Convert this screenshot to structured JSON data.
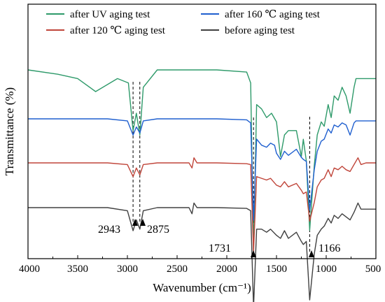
{
  "chart_data": {
    "type": "line",
    "xlabel": "Wavenumber (cm⁻¹)",
    "ylabel": "Transmittance (%)",
    "xlim": [
      4000,
      500
    ],
    "x_reversed": true,
    "x_ticks": [
      "4000",
      "3500",
      "3000",
      "2500",
      "2000",
      "1500",
      "1000",
      "500"
    ],
    "y_tick_labels_shown": false,
    "y_axis_unit": "offset transmittance (stacked, arbitrary)",
    "legend": {
      "placement": "top",
      "columns": 2,
      "entries": [
        {
          "label": "after UV aging test",
          "color": "#2e9a6a"
        },
        {
          "label": "after 160 ℃ aging test",
          "color": "#1f5fcf"
        },
        {
          "label": "after 120 ℃ aging test",
          "color": "#c0453a"
        },
        {
          "label": "before aging test",
          "color": "#404040"
        }
      ]
    },
    "series": [
      {
        "name": "after UV aging test",
        "color": "#2e9a6a",
        "baseline": 100,
        "points": [
          [
            4000,
            100
          ],
          [
            3700,
            99
          ],
          [
            3500,
            98
          ],
          [
            3320,
            95
          ],
          [
            3100,
            98
          ],
          [
            2990,
            97
          ],
          [
            2943,
            86
          ],
          [
            2910,
            90
          ],
          [
            2875,
            85
          ],
          [
            2840,
            96
          ],
          [
            2700,
            100
          ],
          [
            2400,
            100
          ],
          [
            2100,
            100
          ],
          [
            1800,
            99.5
          ],
          [
            1760,
            97
          ],
          [
            1731,
            58
          ],
          [
            1700,
            92
          ],
          [
            1650,
            91
          ],
          [
            1600,
            89
          ],
          [
            1550,
            90
          ],
          [
            1500,
            88
          ],
          [
            1460,
            80
          ],
          [
            1420,
            85
          ],
          [
            1380,
            86
          ],
          [
            1300,
            86
          ],
          [
            1250,
            80
          ],
          [
            1230,
            84
          ],
          [
            1200,
            79
          ],
          [
            1166,
            63
          ],
          [
            1120,
            78
          ],
          [
            1090,
            85
          ],
          [
            1050,
            88
          ],
          [
            1020,
            87
          ],
          [
            980,
            92
          ],
          [
            950,
            89
          ],
          [
            920,
            94
          ],
          [
            880,
            93
          ],
          [
            840,
            96
          ],
          [
            800,
            94
          ],
          [
            760,
            90
          ],
          [
            720,
            96
          ],
          [
            700,
            98
          ],
          [
            600,
            98
          ],
          [
            500,
            98
          ]
        ]
      },
      {
        "name": "after 160 ℃ aging test",
        "color": "#1f5fcf",
        "baseline": 100,
        "points": [
          [
            4000,
            100
          ],
          [
            3500,
            100
          ],
          [
            3200,
            100
          ],
          [
            3000,
            99
          ],
          [
            2943,
            92
          ],
          [
            2910,
            96
          ],
          [
            2875,
            93
          ],
          [
            2840,
            99
          ],
          [
            2700,
            100
          ],
          [
            2400,
            100
          ],
          [
            2100,
            100
          ],
          [
            1800,
            99.5
          ],
          [
            1760,
            98
          ],
          [
            1731,
            50
          ],
          [
            1700,
            90
          ],
          [
            1650,
            87
          ],
          [
            1600,
            86
          ],
          [
            1560,
            88
          ],
          [
            1520,
            87
          ],
          [
            1500,
            83
          ],
          [
            1460,
            80
          ],
          [
            1420,
            84
          ],
          [
            1380,
            82
          ],
          [
            1300,
            85
          ],
          [
            1250,
            81
          ],
          [
            1230,
            80
          ],
          [
            1200,
            79
          ],
          [
            1166,
            55
          ],
          [
            1120,
            75
          ],
          [
            1090,
            84
          ],
          [
            1050,
            89
          ],
          [
            1020,
            90
          ],
          [
            980,
            95
          ],
          [
            950,
            93
          ],
          [
            920,
            97
          ],
          [
            880,
            96
          ],
          [
            840,
            98
          ],
          [
            800,
            97
          ],
          [
            760,
            92
          ],
          [
            720,
            98
          ],
          [
            700,
            99
          ],
          [
            600,
            99
          ],
          [
            500,
            99
          ]
        ]
      },
      {
        "name": "after 120 ℃ aging test",
        "color": "#c0453a",
        "baseline": 100,
        "points": [
          [
            4000,
            100
          ],
          [
            3500,
            100
          ],
          [
            3200,
            100
          ],
          [
            3000,
            99
          ],
          [
            2943,
            92
          ],
          [
            2910,
            97
          ],
          [
            2875,
            93
          ],
          [
            2840,
            99
          ],
          [
            2700,
            100
          ],
          [
            2380,
            100
          ],
          [
            2350,
            97
          ],
          [
            2330,
            103
          ],
          [
            2300,
            100
          ],
          [
            2100,
            100
          ],
          [
            1800,
            99.5
          ],
          [
            1760,
            99
          ],
          [
            1731,
            48
          ],
          [
            1700,
            92
          ],
          [
            1650,
            91
          ],
          [
            1600,
            90
          ],
          [
            1560,
            91
          ],
          [
            1500,
            87
          ],
          [
            1460,
            86
          ],
          [
            1420,
            89
          ],
          [
            1380,
            86
          ],
          [
            1300,
            88
          ],
          [
            1250,
            84
          ],
          [
            1230,
            82
          ],
          [
            1200,
            83
          ],
          [
            1166,
            66
          ],
          [
            1120,
            77
          ],
          [
            1090,
            86
          ],
          [
            1050,
            90
          ],
          [
            1020,
            91
          ],
          [
            980,
            96
          ],
          [
            950,
            92
          ],
          [
            920,
            97
          ],
          [
            880,
            96
          ],
          [
            840,
            98
          ],
          [
            800,
            96
          ],
          [
            760,
            95
          ],
          [
            720,
            99
          ],
          [
            680,
            103
          ],
          [
            650,
            99
          ],
          [
            600,
            100
          ],
          [
            500,
            100
          ]
        ]
      },
      {
        "name": "before aging test",
        "color": "#404040",
        "baseline": 100,
        "points": [
          [
            4000,
            100
          ],
          [
            3500,
            100
          ],
          [
            3200,
            100
          ],
          [
            3000,
            98
          ],
          [
            2943,
            85
          ],
          [
            2910,
            92
          ],
          [
            2875,
            86
          ],
          [
            2840,
            98
          ],
          [
            2700,
            100
          ],
          [
            2380,
            100
          ],
          [
            2350,
            96
          ],
          [
            2330,
            103
          ],
          [
            2300,
            100
          ],
          [
            2100,
            100
          ],
          [
            1800,
            99.5
          ],
          [
            1760,
            98
          ],
          [
            1731,
            35
          ],
          [
            1700,
            86
          ],
          [
            1650,
            86
          ],
          [
            1600,
            84
          ],
          [
            1560,
            86
          ],
          [
            1500,
            82
          ],
          [
            1460,
            80
          ],
          [
            1420,
            85
          ],
          [
            1380,
            80
          ],
          [
            1300,
            84
          ],
          [
            1250,
            78
          ],
          [
            1230,
            76
          ],
          [
            1200,
            78
          ],
          [
            1166,
            40
          ],
          [
            1120,
            70
          ],
          [
            1090,
            82
          ],
          [
            1050,
            86
          ],
          [
            1020,
            88
          ],
          [
            980,
            93
          ],
          [
            950,
            90
          ],
          [
            920,
            95
          ],
          [
            880,
            93
          ],
          [
            840,
            96
          ],
          [
            800,
            94
          ],
          [
            760,
            92
          ],
          [
            720,
            97
          ],
          [
            680,
            103
          ],
          [
            650,
            99
          ],
          [
            600,
            99
          ],
          [
            500,
            99
          ]
        ]
      }
    ],
    "annotations": [
      {
        "label": "2943",
        "x": 2943
      },
      {
        "label": "2875",
        "x": 2875
      },
      {
        "label": "1731",
        "x": 1731
      },
      {
        "label": "1166",
        "x": 1166
      }
    ],
    "dashed_guides_at": [
      2943,
      2875,
      1731,
      1166
    ]
  }
}
